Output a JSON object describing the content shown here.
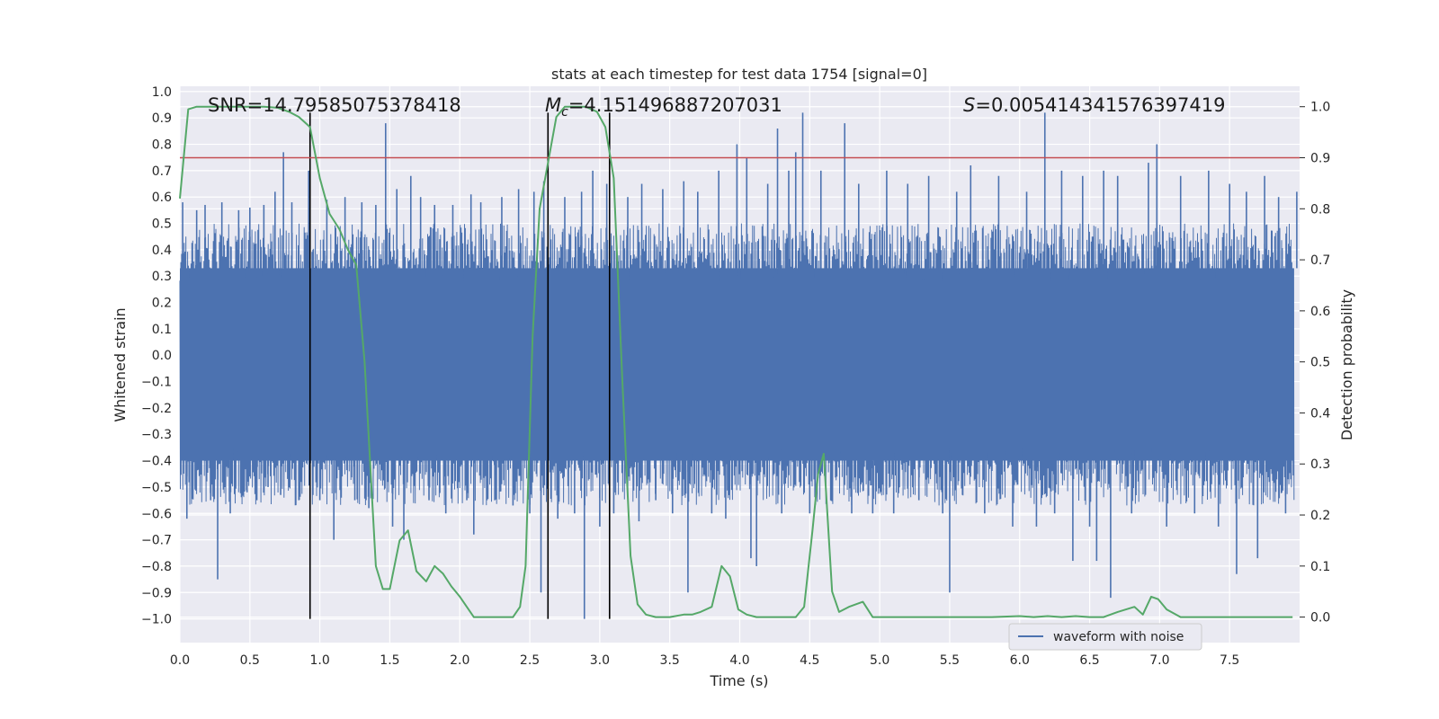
{
  "chart_data": {
    "type": "line",
    "title": "stats at each timestep for test data 1754 [signal=0]",
    "xlabel": "Time (s)",
    "ylabel": "Whitened strain",
    "y2label": "Detection probability",
    "xlim": [
      0.0,
      8.0
    ],
    "ylim": [
      -1.09,
      1.02
    ],
    "y2lim": [
      -0.05,
      1.04
    ],
    "x_ticks": [
      "0.0",
      "0.5",
      "1.0",
      "1.5",
      "2.0",
      "2.5",
      "3.0",
      "3.5",
      "4.0",
      "4.5",
      "5.0",
      "5.5",
      "6.0",
      "6.5",
      "7.0",
      "7.5"
    ],
    "y_ticks": [
      "1.0",
      "0.9",
      "0.8",
      "0.7",
      "0.6",
      "0.5",
      "0.4",
      "0.3",
      "0.2",
      "0.1",
      "0.0",
      "−0.1",
      "−0.2",
      "−0.3",
      "−0.4",
      "−0.5",
      "−0.6",
      "−0.7",
      "−0.8",
      "−0.9",
      "−1.0"
    ],
    "y2_ticks": [
      "1.0",
      "0.9",
      "0.8",
      "0.7",
      "0.6",
      "0.5",
      "0.4",
      "0.3",
      "0.2",
      "0.1",
      "0.0"
    ],
    "grid": true,
    "legend": {
      "placement": "lower-center-right",
      "entries": [
        "waveform with noise"
      ]
    },
    "annotations": {
      "snr": "SNR=14.79585075378418",
      "mc_symbol": "M",
      "mc_sub": "c",
      "mc_value": "=4.151496887207031",
      "s_symbol": "S",
      "s_value": "=0.005414341576397419"
    },
    "threshold_line": {
      "y2": 0.9,
      "color": "#c44e52"
    },
    "vertical_lines_x": [
      0.93,
      2.63,
      3.07
    ],
    "vertical_lines_range_y": [
      -1.0,
      0.92
    ],
    "waveform": {
      "name": "waveform with noise",
      "color": "#4c72b0",
      "dense_envelope": {
        "upper": 0.33,
        "lower": -0.4
      },
      "spikes": [
        [
          0.02,
          0.58
        ],
        [
          0.05,
          -0.62
        ],
        [
          0.12,
          0.55
        ],
        [
          0.18,
          0.57
        ],
        [
          0.22,
          -0.55
        ],
        [
          0.27,
          -0.85
        ],
        [
          0.3,
          0.58
        ],
        [
          0.36,
          -0.6
        ],
        [
          0.42,
          0.55
        ],
        [
          0.48,
          -0.52
        ],
        [
          0.5,
          0.56
        ],
        [
          0.55,
          -0.55
        ],
        [
          0.6,
          0.57
        ],
        [
          0.63,
          -0.5
        ],
        [
          0.68,
          0.62
        ],
        [
          0.72,
          -0.53
        ],
        [
          0.74,
          0.77
        ],
        [
          0.8,
          0.58
        ],
        [
          0.85,
          -0.55
        ],
        [
          0.92,
          0.7
        ],
        [
          1.0,
          -0.55
        ],
        [
          1.05,
          0.59
        ],
        [
          1.1,
          -0.7
        ],
        [
          1.18,
          0.6
        ],
        [
          1.25,
          -0.55
        ],
        [
          1.3,
          0.58
        ],
        [
          1.35,
          -0.58
        ],
        [
          1.4,
          0.57
        ],
        [
          1.47,
          0.88
        ],
        [
          1.52,
          -0.65
        ],
        [
          1.55,
          0.63
        ],
        [
          1.6,
          -0.7
        ],
        [
          1.65,
          0.68
        ],
        [
          1.72,
          0.6
        ],
        [
          1.78,
          -0.55
        ],
        [
          1.82,
          0.57
        ],
        [
          1.9,
          -0.6
        ],
        [
          1.95,
          0.57
        ],
        [
          2.05,
          -0.55
        ],
        [
          2.08,
          0.61
        ],
        [
          2.1,
          -0.68
        ],
        [
          2.15,
          0.58
        ],
        [
          2.25,
          -0.55
        ],
        [
          2.3,
          0.6
        ],
        [
          2.38,
          -0.57
        ],
        [
          2.42,
          0.63
        ],
        [
          2.5,
          -0.6
        ],
        [
          2.53,
          0.62
        ],
        [
          2.58,
          -0.9
        ],
        [
          2.6,
          0.66
        ],
        [
          2.7,
          -0.62
        ],
        [
          2.75,
          0.6
        ],
        [
          2.82,
          -0.6
        ],
        [
          2.87,
          0.62
        ],
        [
          2.89,
          -1.0
        ],
        [
          2.95,
          0.7
        ],
        [
          3.0,
          -0.65
        ],
        [
          3.05,
          0.65
        ],
        [
          3.1,
          -0.6
        ],
        [
          3.2,
          0.6
        ],
        [
          3.28,
          -0.63
        ],
        [
          3.3,
          0.65
        ],
        [
          3.4,
          -0.55
        ],
        [
          3.45,
          0.63
        ],
        [
          3.52,
          -0.6
        ],
        [
          3.6,
          0.66
        ],
        [
          3.63,
          -0.9
        ],
        [
          3.7,
          0.62
        ],
        [
          3.8,
          -0.6
        ],
        [
          3.85,
          0.7
        ],
        [
          3.9,
          -0.62
        ],
        [
          3.98,
          0.8
        ],
        [
          4.05,
          0.75
        ],
        [
          4.08,
          -0.77
        ],
        [
          4.12,
          -0.8
        ],
        [
          4.2,
          0.65
        ],
        [
          4.27,
          0.86
        ],
        [
          4.3,
          -0.6
        ],
        [
          4.35,
          0.7
        ],
        [
          4.4,
          0.77
        ],
        [
          4.45,
          0.92
        ],
        [
          4.5,
          -0.6
        ],
        [
          4.58,
          0.7
        ],
        [
          4.65,
          -0.55
        ],
        [
          4.75,
          0.88
        ],
        [
          4.8,
          -0.6
        ],
        [
          4.85,
          0.65
        ],
        [
          4.95,
          -0.6
        ],
        [
          5.05,
          0.7
        ],
        [
          5.1,
          -0.6
        ],
        [
          5.2,
          0.65
        ],
        [
          5.28,
          -0.55
        ],
        [
          5.35,
          0.68
        ],
        [
          5.45,
          -0.6
        ],
        [
          5.5,
          -0.9
        ],
        [
          5.55,
          0.62
        ],
        [
          5.65,
          0.72
        ],
        [
          5.75,
          -0.6
        ],
        [
          5.85,
          0.68
        ],
        [
          5.95,
          -0.65
        ],
        [
          6.05,
          0.62
        ],
        [
          6.12,
          -0.65
        ],
        [
          6.18,
          0.92
        ],
        [
          6.25,
          -0.6
        ],
        [
          6.3,
          0.7
        ],
        [
          6.38,
          -0.78
        ],
        [
          6.45,
          0.68
        ],
        [
          6.5,
          -0.65
        ],
        [
          6.55,
          -0.78
        ],
        [
          6.6,
          0.7
        ],
        [
          6.65,
          -0.92
        ],
        [
          6.7,
          0.68
        ],
        [
          6.8,
          -0.6
        ],
        [
          6.92,
          0.73
        ],
        [
          6.98,
          0.8
        ],
        [
          7.05,
          -0.65
        ],
        [
          7.15,
          0.68
        ],
        [
          7.25,
          -0.6
        ],
        [
          7.35,
          0.7
        ],
        [
          7.42,
          -0.65
        ],
        [
          7.5,
          0.65
        ],
        [
          7.55,
          -0.83
        ],
        [
          7.62,
          0.62
        ],
        [
          7.7,
          -0.77
        ],
        [
          7.75,
          0.68
        ],
        [
          7.85,
          0.6
        ],
        [
          7.9,
          -0.6
        ],
        [
          7.98,
          0.62
        ]
      ]
    },
    "detection_probability": {
      "color": "#55a868",
      "x": [
        0.0,
        0.06,
        0.12,
        0.2,
        0.3,
        0.4,
        0.5,
        0.6,
        0.7,
        0.78,
        0.85,
        0.93,
        1.0,
        1.07,
        1.14,
        1.2,
        1.26,
        1.32,
        1.36,
        1.4,
        1.45,
        1.5,
        1.57,
        1.63,
        1.69,
        1.76,
        1.82,
        1.88,
        1.94,
        2.0,
        2.1,
        2.2,
        2.3,
        2.38,
        2.43,
        2.47,
        2.52,
        2.57,
        2.63,
        2.69,
        2.75,
        2.82,
        2.9,
        2.98,
        3.04,
        3.1,
        3.16,
        3.22,
        3.27,
        3.33,
        3.4,
        3.5,
        3.6,
        3.66,
        3.72,
        3.8,
        3.87,
        3.93,
        3.99,
        4.05,
        4.12,
        4.2,
        4.3,
        4.4,
        4.46,
        4.52,
        4.56,
        4.6,
        4.66,
        4.71,
        4.78,
        4.88,
        4.95,
        5.05,
        5.2,
        5.4,
        5.6,
        5.8,
        6.0,
        6.1,
        6.2,
        6.3,
        6.4,
        6.5,
        6.6,
        6.7,
        6.76,
        6.82,
        6.88,
        6.94,
        6.99,
        7.05,
        7.15,
        7.3,
        7.5,
        7.7,
        7.95
      ],
      "values": [
        0.82,
        0.995,
        1.0,
        1.0,
        1.0,
        1.0,
        1.0,
        1.0,
        0.998,
        0.99,
        0.98,
        0.96,
        0.86,
        0.79,
        0.76,
        0.72,
        0.69,
        0.5,
        0.3,
        0.1,
        0.055,
        0.055,
        0.15,
        0.17,
        0.09,
        0.07,
        0.1,
        0.085,
        0.06,
        0.04,
        0.0,
        0.0,
        0.0,
        0.0,
        0.02,
        0.1,
        0.55,
        0.8,
        0.89,
        0.98,
        1.0,
        1.0,
        1.0,
        0.99,
        0.96,
        0.86,
        0.47,
        0.12,
        0.025,
        0.005,
        0.0,
        0.0,
        0.005,
        0.005,
        0.01,
        0.02,
        0.1,
        0.08,
        0.015,
        0.005,
        0.0,
        0.0,
        0.0,
        0.0,
        0.02,
        0.17,
        0.28,
        0.32,
        0.05,
        0.01,
        0.02,
        0.03,
        0.0,
        0.0,
        0.0,
        0.0,
        0.0,
        0.0,
        0.002,
        0.0,
        0.002,
        0.0,
        0.002,
        0.0,
        0.0,
        0.01,
        0.015,
        0.02,
        0.005,
        0.04,
        0.035,
        0.015,
        0.0,
        0.0,
        0.0,
        0.0,
        0.0
      ]
    }
  }
}
